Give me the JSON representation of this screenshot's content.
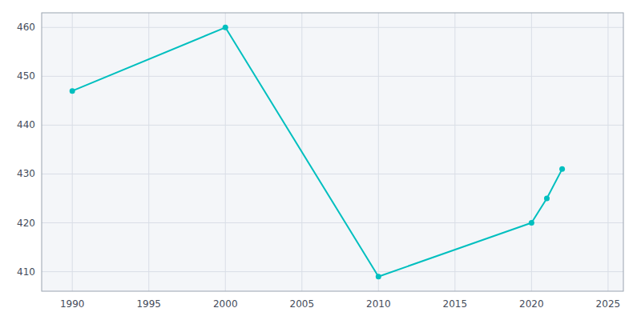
{
  "chart_data": {
    "type": "line",
    "x": [
      1990,
      2000,
      2010,
      2020,
      2021,
      2022
    ],
    "values": [
      447,
      460,
      409,
      420,
      425,
      431
    ],
    "color": "#00BFBF",
    "marker": "circle",
    "xlim": [
      1988,
      2026
    ],
    "ylim": [
      406,
      463
    ],
    "xticks": [
      1990,
      1995,
      2000,
      2005,
      2010,
      2015,
      2020,
      2025
    ],
    "yticks": [
      410,
      420,
      430,
      440,
      450,
      460
    ],
    "grid": true
  }
}
